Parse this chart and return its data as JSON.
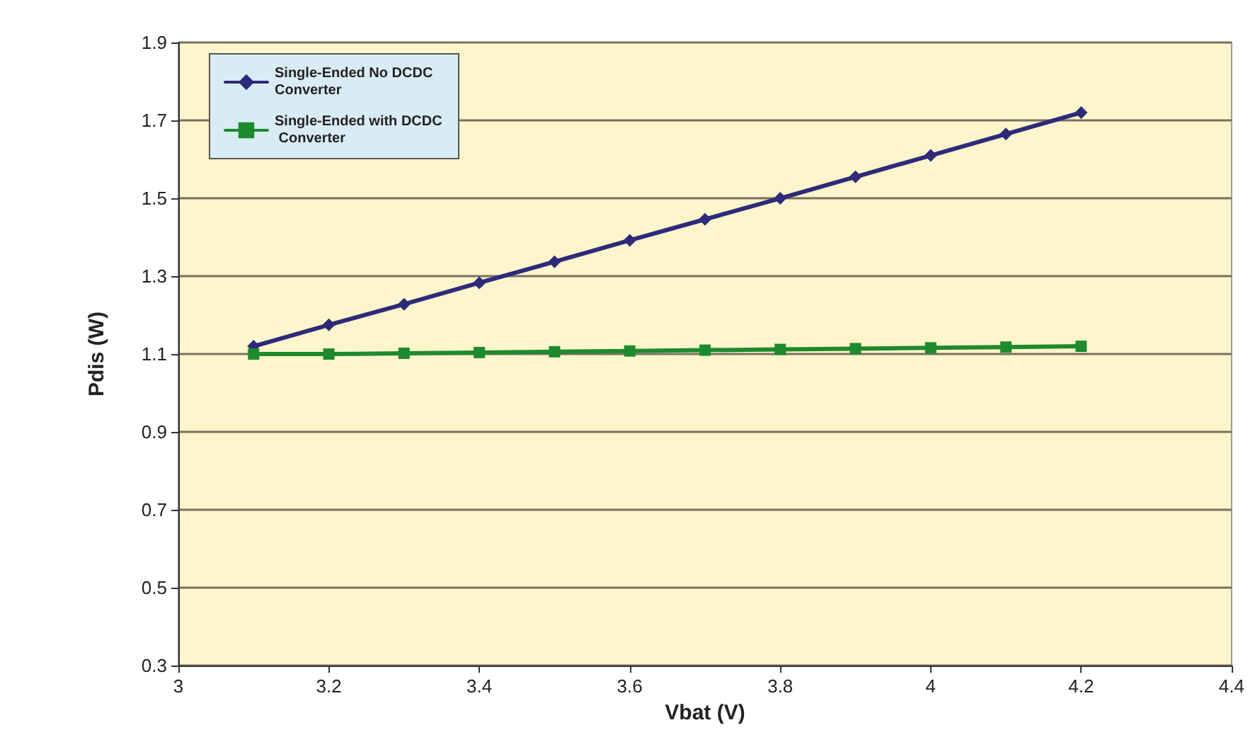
{
  "chart_data": {
    "type": "line",
    "xlabel": "Vbat (V)",
    "ylabel": "Pdis (W)",
    "x": [
      3.1,
      3.2,
      3.3,
      3.4,
      3.5,
      3.6,
      3.7,
      3.8,
      3.9,
      4.0,
      4.1,
      4.2
    ],
    "series": [
      {
        "name": "Single-Ended No DCDC Converter",
        "color": "#2e2a7a",
        "marker": "diamond",
        "values": [
          1.12,
          1.175,
          1.228,
          1.283,
          1.337,
          1.392,
          1.446,
          1.5,
          1.555,
          1.61,
          1.665,
          1.72
        ]
      },
      {
        "name": "Single-Ended with DCDC Converter",
        "color": "#1e8a2e",
        "marker": "square",
        "values": [
          1.1,
          1.1,
          1.102,
          1.104,
          1.106,
          1.108,
          1.11,
          1.112,
          1.114,
          1.116,
          1.118,
          1.12
        ]
      }
    ],
    "xlim": [
      3,
      4.4
    ],
    "xticks": [
      3,
      3.2,
      3.4,
      3.6,
      3.8,
      4,
      4.2,
      4.4
    ],
    "ylim": [
      0.3,
      1.9
    ],
    "yticks": [
      0.3,
      0.5,
      0.7,
      0.9,
      1.1,
      1.3,
      1.5,
      1.7,
      1.9
    ],
    "grid": "y",
    "legend": "top left",
    "line_style": "solid"
  }
}
